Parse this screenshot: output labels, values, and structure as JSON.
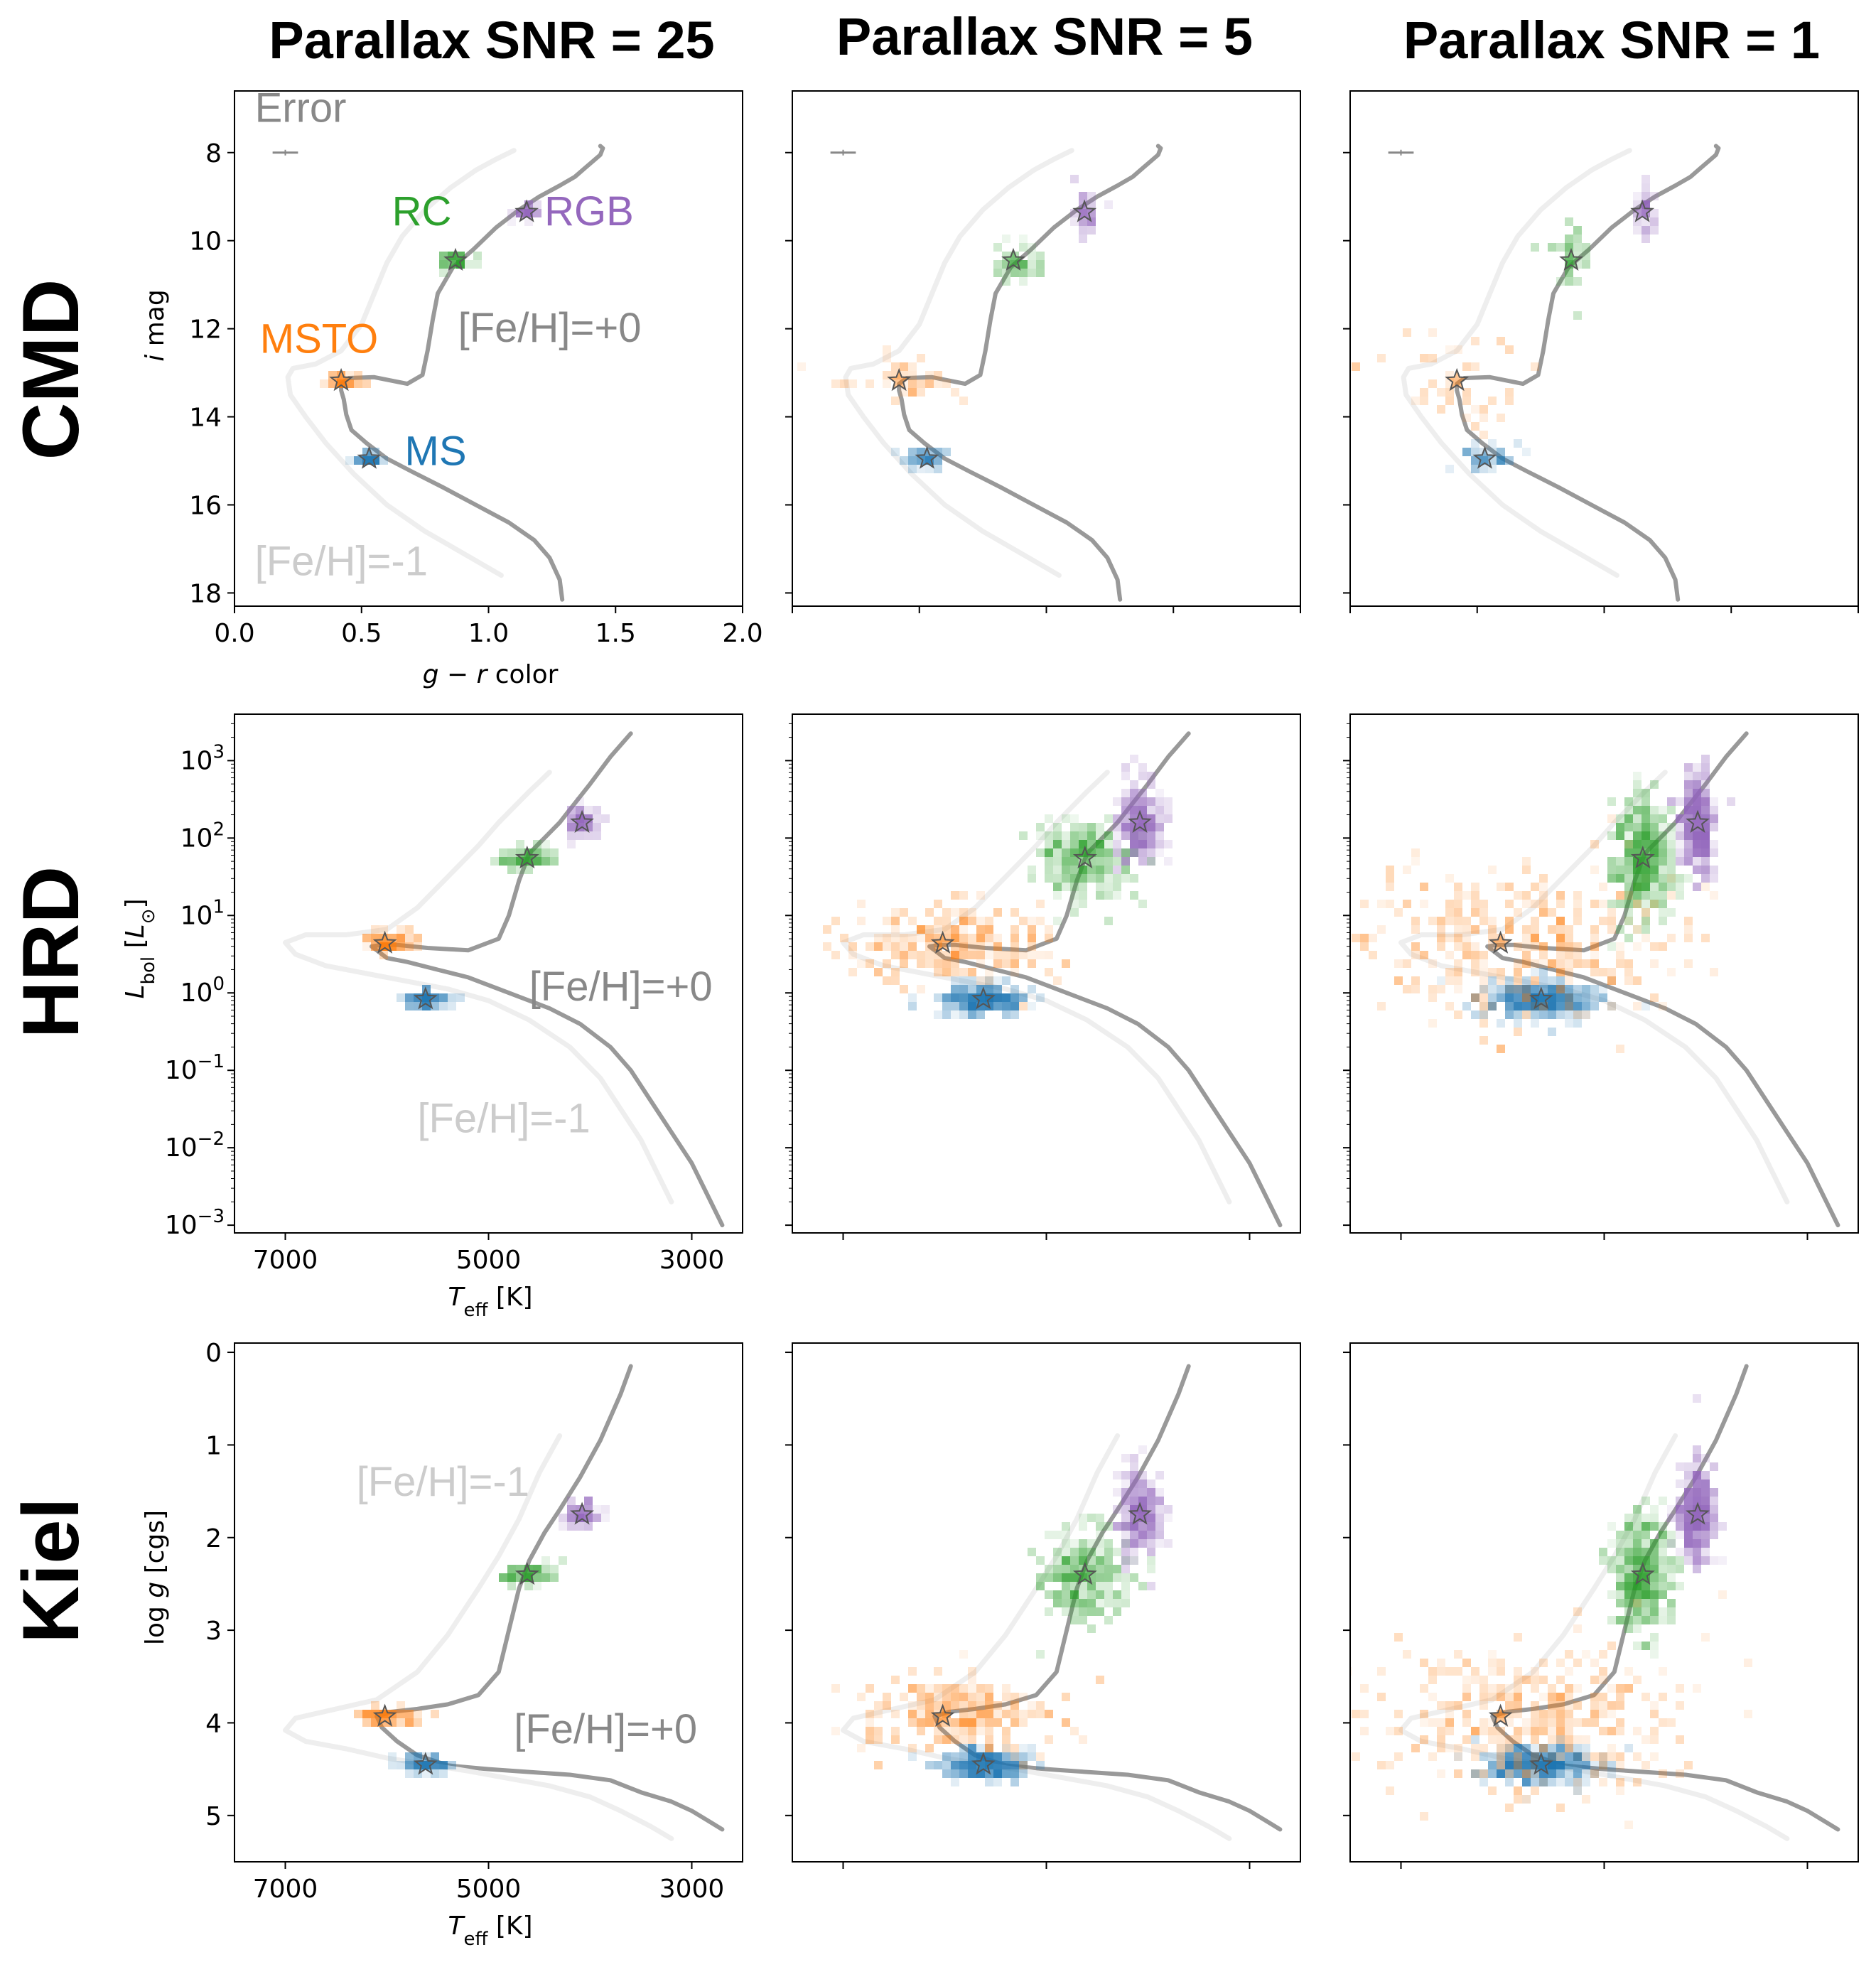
{
  "column_titles": [
    "Parallax SNR = 25",
    "Parallax SNR = 5",
    "Parallax SNR = 1"
  ],
  "row_titles": [
    "CMD",
    "HRD",
    "Kiel"
  ],
  "colors": {
    "solar_track": "#999999",
    "metal_poor_track": "#eeeeee",
    "MS": "#1f77b4",
    "MSTO": "#ff7f0e",
    "RC": "#2ca02c",
    "RGB": "#9467bd"
  },
  "labels": {
    "error": "Error",
    "ms": "MS",
    "msto": "MSTO",
    "rc": "RC",
    "rgb": "RGB",
    "feh_solar": "[Fe/H]=+0",
    "feh_poor": "[Fe/H]=-1",
    "cmd_xlabel_g": "g",
    "cmd_xlabel_rest": " − ",
    "cmd_xlabel_r": "r",
    "cmd_xlabel_color": " color",
    "cmd_ylabel_i": "i",
    "cmd_ylabel_mag": " mag",
    "teff_T": "T",
    "teff_sub": "eff",
    "teff_unit": " [K]",
    "lbol_L": "L",
    "lbol_sub": "bol",
    "lbol_unit_open": " [",
    "lbol_unit_L": "L",
    "lbol_unit_sun": "⊙",
    "lbol_unit_close": "]",
    "logg_log": "log ",
    "logg_g": "g",
    "logg_unit": " [cgs]"
  },
  "chart_data": [
    {
      "type": "scatter",
      "panel": "CMD",
      "xlabel": "g − r color",
      "ylabel": "i mag",
      "xlim": [
        0.0,
        2.0
      ],
      "ylim": [
        18.3,
        6.6
      ],
      "xticks": [
        "0.0",
        "0.5",
        "1.0",
        "1.5",
        "2.0"
      ],
      "yticks": [
        "8",
        "10",
        "12",
        "14",
        "16",
        "18"
      ],
      "error_bar": {
        "x": 0.2,
        "y": 8.0,
        "xerr": 0.05
      },
      "tracks": [
        {
          "name": "[Fe/H]=+0",
          "x": [
            1.29,
            1.28,
            1.24,
            1.18,
            1.08,
            0.95,
            0.82,
            0.7,
            0.6,
            0.52,
            0.46,
            0.44,
            0.43,
            0.42,
            0.42,
            0.45,
            0.55,
            0.68,
            0.74,
            0.76,
            0.78,
            0.8,
            0.86,
            0.94,
            1.03,
            1.12,
            1.2,
            1.28,
            1.34,
            1.38,
            1.41,
            1.44,
            1.45,
            1.44
          ],
          "y": [
            18.15,
            17.7,
            17.2,
            16.8,
            16.4,
            16.0,
            15.6,
            15.25,
            14.95,
            14.6,
            14.3,
            13.95,
            13.6,
            13.4,
            13.25,
            13.12,
            13.1,
            13.25,
            13.05,
            12.5,
            11.8,
            11.2,
            10.6,
            10.2,
            9.7,
            9.3,
            9.0,
            8.75,
            8.55,
            8.35,
            8.2,
            8.05,
            7.9,
            7.85
          ]
        },
        {
          "name": "[Fe/H]=-1",
          "x": [
            1.05,
            0.9,
            0.75,
            0.6,
            0.47,
            0.36,
            0.28,
            0.22,
            0.21,
            0.23,
            0.32,
            0.42,
            0.5,
            0.55,
            0.6,
            0.66,
            0.75,
            0.85,
            0.95,
            1.03,
            1.1
          ],
          "y": [
            17.6,
            17.1,
            16.6,
            16.0,
            15.3,
            14.6,
            14.0,
            13.5,
            13.1,
            12.9,
            12.8,
            12.5,
            11.9,
            11.2,
            10.5,
            9.9,
            9.3,
            8.8,
            8.4,
            8.15,
            7.95
          ]
        }
      ],
      "stars": [
        {
          "name": "MS",
          "x": 0.53,
          "y": 14.95
        },
        {
          "name": "MSTO",
          "x": 0.42,
          "y": 13.18
        },
        {
          "name": "RC",
          "x": 0.87,
          "y": 10.45
        },
        {
          "name": "RGB",
          "x": 1.15,
          "y": 9.35
        }
      ],
      "annotations": [
        {
          "text": "Error",
          "x": 0.08,
          "y": 7.3
        },
        {
          "text": "RC",
          "x": 0.62,
          "y": 9.65
        },
        {
          "text": "RGB",
          "x": 1.22,
          "y": 9.65
        },
        {
          "text": "MSTO",
          "x": 0.1,
          "y": 12.55
        },
        {
          "text": "[Fe/H]=+0",
          "x": 0.88,
          "y": 12.3
        },
        {
          "text": "MS",
          "x": 0.67,
          "y": 15.1
        },
        {
          "text": "[Fe/H]=-1",
          "x": 0.08,
          "y": 17.6
        }
      ]
    },
    {
      "type": "scatter",
      "panel": "HRD",
      "xlabel": "Teff [K]",
      "ylabel": "Lbol [L⊙]",
      "xlim": [
        7500,
        2500
      ],
      "ylim_log10": [
        -3.1,
        3.6
      ],
      "xticks": [
        "7000",
        "5000",
        "3000"
      ],
      "yticks": [
        {
          "base": "10",
          "exp": "3",
          "v": 3
        },
        {
          "base": "10",
          "exp": "2",
          "v": 2
        },
        {
          "base": "10",
          "exp": "1",
          "v": 1
        },
        {
          "base": "10",
          "exp": "0",
          "v": 0
        },
        {
          "base": "10",
          "exp": "−1",
          "v": -1
        },
        {
          "base": "10",
          "exp": "−2",
          "v": -2
        },
        {
          "base": "10",
          "exp": "−3",
          "v": -3
        }
      ],
      "tracks": [
        {
          "name": "[Fe/H]=+0",
          "x": [
            2700,
            2850,
            3000,
            3200,
            3400,
            3600,
            3800,
            4100,
            4400,
            4800,
            5200,
            5500,
            5800,
            6000,
            6100,
            6150,
            6050,
            5900,
            5600,
            5200,
            4900,
            4800,
            4700,
            4600,
            4450,
            4300,
            4150,
            4000,
            3800,
            3600
          ],
          "logL": [
            -3.0,
            -2.6,
            -2.2,
            -1.8,
            -1.4,
            -1.0,
            -0.7,
            -0.4,
            -0.2,
            0.0,
            0.2,
            0.3,
            0.4,
            0.45,
            0.55,
            0.6,
            0.62,
            0.62,
            0.58,
            0.55,
            0.7,
            1.0,
            1.45,
            1.8,
            2.0,
            2.2,
            2.45,
            2.7,
            3.05,
            3.35
          ]
        },
        {
          "name": "[Fe/H]=-1",
          "x": [
            3200,
            3350,
            3500,
            3700,
            3900,
            4200,
            4600,
            5000,
            5400,
            5800,
            6200,
            6600,
            6900,
            7000,
            6800,
            6400,
            6000,
            5700,
            5400,
            5100,
            4900,
            4600,
            4400
          ],
          "logL": [
            -2.7,
            -2.3,
            -1.9,
            -1.5,
            -1.1,
            -0.7,
            -0.35,
            -0.1,
            0.05,
            0.15,
            0.25,
            0.35,
            0.5,
            0.65,
            0.75,
            0.75,
            0.82,
            1.1,
            1.5,
            1.9,
            2.2,
            2.6,
            2.85
          ]
        }
      ],
      "stars": [
        {
          "name": "MS",
          "x": 5620,
          "logL": -0.08
        },
        {
          "name": "MSTO",
          "x": 6020,
          "logL": 0.64
        },
        {
          "name": "RC",
          "x": 4620,
          "logL": 1.74
        },
        {
          "name": "RGB",
          "x": 4080,
          "logL": 2.2
        }
      ],
      "annotations": [
        {
          "text": "[Fe/H]=+0",
          "x": 4600,
          "logL": -0.1
        },
        {
          "text": "[Fe/H]=-1",
          "x": 5700,
          "logL": -1.8
        }
      ]
    },
    {
      "type": "scatter",
      "panel": "Kiel",
      "xlabel": "Teff [K]",
      "ylabel": "log g [cgs]",
      "xlim": [
        7500,
        2500
      ],
      "ylim": [
        5.5,
        -0.1
      ],
      "xticks": [
        "7000",
        "5000",
        "3000"
      ],
      "yticks": [
        "0",
        "1",
        "2",
        "3",
        "4",
        "5"
      ],
      "tracks": [
        {
          "name": "[Fe/H]=+0",
          "x": [
            2700,
            2850,
            3000,
            3200,
            3500,
            3800,
            4200,
            4600,
            5000,
            5400,
            5700,
            5900,
            6050,
            6100,
            5950,
            5700,
            5400,
            5100,
            4900,
            4800,
            4700,
            4600,
            4450,
            4300,
            4100,
            3900,
            3700,
            3600
          ],
          "logg": [
            5.15,
            5.05,
            4.95,
            4.85,
            4.75,
            4.62,
            4.56,
            4.53,
            4.5,
            4.46,
            4.35,
            4.2,
            4.05,
            3.93,
            3.88,
            3.85,
            3.8,
            3.7,
            3.45,
            3.0,
            2.55,
            2.25,
            1.95,
            1.7,
            1.35,
            0.95,
            0.45,
            0.15
          ]
        },
        {
          "name": "[Fe/H]=-1",
          "x": [
            3200,
            3400,
            3700,
            4000,
            4400,
            4800,
            5200,
            5600,
            6000,
            6400,
            6800,
            7000,
            6900,
            6500,
            6100,
            5700,
            5400,
            5100,
            4900,
            4700,
            4500,
            4300
          ],
          "logg": [
            5.25,
            5.12,
            4.95,
            4.8,
            4.68,
            4.6,
            4.52,
            4.45,
            4.38,
            4.28,
            4.2,
            4.08,
            3.95,
            3.85,
            3.75,
            3.45,
            3.05,
            2.55,
            2.2,
            1.8,
            1.3,
            0.9
          ]
        }
      ],
      "stars": [
        {
          "name": "MS",
          "x": 5620,
          "logg": 4.45
        },
        {
          "name": "MSTO",
          "x": 6020,
          "logg": 3.93
        },
        {
          "name": "RC",
          "x": 4620,
          "logg": 2.4
        },
        {
          "name": "RGB",
          "x": 4080,
          "logg": 1.75
        }
      ],
      "annotations": [
        {
          "text": "[Fe/H]=-1",
          "x": 6300,
          "logg": 1.55
        },
        {
          "text": "[Fe/H]=+0",
          "x": 4750,
          "logg": 4.22
        }
      ]
    }
  ]
}
